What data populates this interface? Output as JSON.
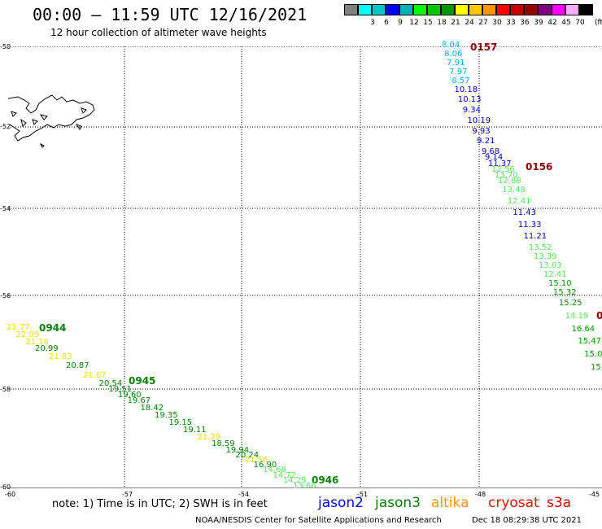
{
  "title": "00:00 – 11:59 UTC 12/16/2021",
  "subtitle": "12 hour collection of altimeter wave heights",
  "scale": {
    "unit": "(ft)",
    "bins": [
      {
        "label": "",
        "color": "#808080"
      },
      {
        "label": "3",
        "color": "#00ffff"
      },
      {
        "label": "6",
        "color": "#00c8c8"
      },
      {
        "label": "9",
        "color": "#0000ff"
      },
      {
        "label": "12",
        "color": "#00b4b4"
      },
      {
        "label": "15",
        "color": "#00ff00"
      },
      {
        "label": "18",
        "color": "#00c800"
      },
      {
        "label": "21",
        "color": "#009600"
      },
      {
        "label": "24",
        "color": "#ffff00"
      },
      {
        "label": "27",
        "color": "#ffc800"
      },
      {
        "label": "30",
        "color": "#ff9600"
      },
      {
        "label": "33",
        "color": "#ff0000"
      },
      {
        "label": "36",
        "color": "#c80000"
      },
      {
        "label": "39",
        "color": "#960000"
      },
      {
        "label": "42",
        "color": "#800080"
      },
      {
        "label": "45",
        "color": "#ff00ff"
      },
      {
        "label": "70",
        "color": "#ffaaff"
      },
      {
        "label": "",
        "color": "#000000"
      }
    ]
  },
  "lat_labels": [
    "-50",
    "-52",
    "-54",
    "-56",
    "-58",
    "-60"
  ],
  "lon_labels": [
    "-60",
    "-57",
    "-54",
    "-51",
    "-48",
    "-45"
  ],
  "passes": [
    {
      "label": "0157",
      "color": "#8b0000"
    },
    {
      "label": "0156",
      "color": "#8b0000"
    },
    {
      "label": "0944",
      "color": "#008000"
    },
    {
      "label": "0945",
      "color": "#008000"
    },
    {
      "label": "0946",
      "color": "#008000"
    },
    {
      "label": "0",
      "color": "#8b0000"
    }
  ],
  "track_east": [
    {
      "v": "8.04",
      "c": "#00b4e6"
    },
    {
      "v": "8.06",
      "c": "#00b4e6"
    },
    {
      "v": "7.91",
      "c": "#00b4e6"
    },
    {
      "v": "7.97",
      "c": "#00b4e6"
    },
    {
      "v": "8.57",
      "c": "#00b4e6"
    },
    {
      "v": "10.18",
      "c": "#0000c8"
    },
    {
      "v": "10.13",
      "c": "#0000c8"
    },
    {
      "v": "9.34",
      "c": "#0000c8"
    },
    {
      "v": "10.19",
      "c": "#0000c8"
    },
    {
      "v": "9.93",
      "c": "#0000c8"
    },
    {
      "v": "9.21",
      "c": "#0000c8"
    },
    {
      "v": "9.68",
      "c": "#0000c8"
    },
    {
      "v": "9.14",
      "c": "#0000c8"
    },
    {
      "v": "11.37",
      "c": "#0000c8"
    },
    {
      "v": "12.56",
      "c": "#5ae65a"
    },
    {
      "v": "13.70",
      "c": "#5ae65a"
    },
    {
      "v": "12.88",
      "c": "#5ae65a"
    },
    {
      "v": "13.48",
      "c": "#5ae65a"
    },
    {
      "v": "12.41",
      "c": "#5ae65a"
    },
    {
      "v": "11.43",
      "c": "#0000c8"
    },
    {
      "v": "11.33",
      "c": "#0000c8"
    },
    {
      "v": "11.21",
      "c": "#0000c8"
    },
    {
      "v": "13.52",
      "c": "#5ae65a"
    },
    {
      "v": "13.39",
      "c": "#5ae65a"
    },
    {
      "v": "13.03",
      "c": "#5ae65a"
    },
    {
      "v": "12.41",
      "c": "#5ae65a"
    },
    {
      "v": "15.10",
      "c": "#009600"
    },
    {
      "v": "15.32",
      "c": "#009600"
    },
    {
      "v": "15.25",
      "c": "#009600"
    },
    {
      "v": "14.19",
      "c": "#5ae65a"
    },
    {
      "v": "16.64",
      "c": "#009600"
    },
    {
      "v": "15.47",
      "c": "#009600"
    },
    {
      "v": "15.0",
      "c": "#009600"
    },
    {
      "v": "15",
      "c": "#009600"
    }
  ],
  "track_west": [
    {
      "v": "21.77",
      "c": "#e6e600"
    },
    {
      "v": "22.09",
      "c": "#e6e600"
    },
    {
      "v": "21.16",
      "c": "#e6e600"
    },
    {
      "v": "20.99",
      "c": "#008000"
    },
    {
      "v": "21.83",
      "c": "#e6e600"
    },
    {
      "v": "20.87",
      "c": "#008000"
    },
    {
      "v": "21.67",
      "c": "#e6e600"
    },
    {
      "v": "20.54",
      "c": "#008000"
    },
    {
      "v": "19.51",
      "c": "#008000"
    },
    {
      "v": "19.60",
      "c": "#008000"
    },
    {
      "v": "19.67",
      "c": "#008000"
    },
    {
      "v": "18.42",
      "c": "#008000"
    },
    {
      "v": "19.35",
      "c": "#008000"
    },
    {
      "v": "19.15",
      "c": "#008000"
    },
    {
      "v": "19.11",
      "c": "#008000"
    },
    {
      "v": "21.29",
      "c": "#e6e600"
    },
    {
      "v": "18.59",
      "c": "#008000"
    },
    {
      "v": "19.94",
      "c": "#008000"
    },
    {
      "v": "20.24",
      "c": "#008000"
    },
    {
      "v": "21.56",
      "c": "#e6e600"
    },
    {
      "v": "16.90",
      "c": "#008000"
    },
    {
      "v": "14.68",
      "c": "#5ae65a"
    },
    {
      "v": "14.72",
      "c": "#5ae65a"
    },
    {
      "v": "14.29",
      "c": "#5ae65a"
    },
    {
      "v": "13.66",
      "c": "#5ae65a"
    }
  ],
  "note": "note: 1) Time is in UTC; 2) SWH is in feet",
  "satellites": [
    {
      "name": "jason2",
      "color": "#0000ff"
    },
    {
      "name": "jason3",
      "color": "#008000"
    },
    {
      "name": "altika",
      "color": "#ff9600"
    },
    {
      "name": "cryosat",
      "color": "#ff0000"
    },
    {
      "name": "s3a",
      "color": "#c80000"
    }
  ],
  "footer_left": "NOAA/NESDIS Center for Satellite Applications and Research",
  "footer_right": "Dec 18 08:29:38 UTC 2021"
}
